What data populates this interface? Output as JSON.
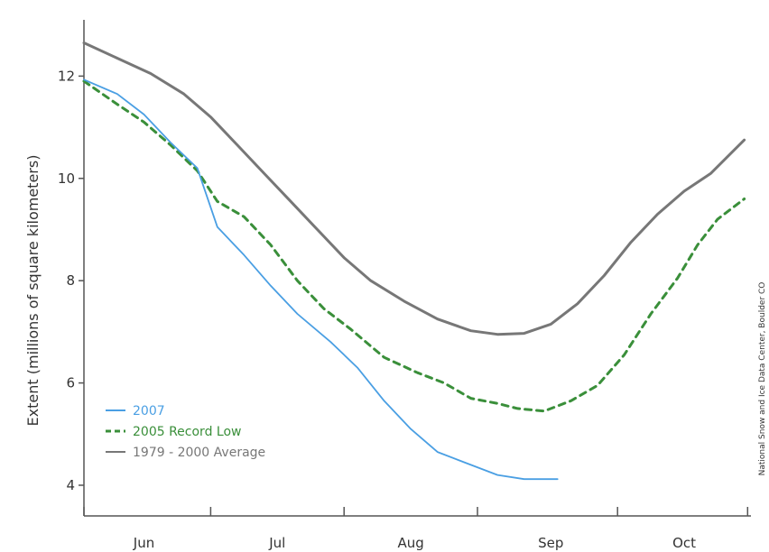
{
  "chart_data": {
    "type": "line",
    "ylabel": "Extent (millions of square kilometers)",
    "xlabel": "",
    "title": "",
    "ylim": [
      3.4,
      13.1
    ],
    "xlim": [
      0,
      100
    ],
    "y_ticks": [
      4,
      6,
      8,
      10,
      12
    ],
    "x_tick_labels": [
      {
        "label": "Jun",
        "x": 9
      },
      {
        "label": "Jul",
        "x": 29
      },
      {
        "label": "Aug",
        "x": 49
      },
      {
        "label": "Sep",
        "x": 70
      },
      {
        "label": "Oct",
        "x": 90
      }
    ],
    "x_minor_ticks": [
      0,
      19,
      39,
      59,
      80,
      99.5
    ],
    "grid": false,
    "legend_position": "lower-left",
    "credit": "National Snow and Ice Data Center, Boulder CO",
    "series": [
      {
        "name": "2007",
        "color": "#4a9fe3",
        "style": "solid",
        "points": [
          [
            0,
            11.93
          ],
          [
            5,
            11.65
          ],
          [
            9,
            11.25
          ],
          [
            13,
            10.7
          ],
          [
            17,
            10.2
          ],
          [
            20,
            9.05
          ],
          [
            24,
            8.5
          ],
          [
            28,
            7.9
          ],
          [
            32,
            7.35
          ],
          [
            37,
            6.8
          ],
          [
            41,
            6.3
          ],
          [
            45,
            5.65
          ],
          [
            49,
            5.1
          ],
          [
            53,
            4.65
          ],
          [
            57,
            4.45
          ],
          [
            62,
            4.2
          ],
          [
            66,
            4.12
          ],
          [
            71,
            4.12
          ]
        ]
      },
      {
        "name": "2005 Record Low",
        "color": "#3a8f3a",
        "style": "dashed",
        "points": [
          [
            0,
            11.9
          ],
          [
            5,
            11.45
          ],
          [
            9,
            11.1
          ],
          [
            13,
            10.65
          ],
          [
            17,
            10.15
          ],
          [
            20,
            9.55
          ],
          [
            24,
            9.25
          ],
          [
            28,
            8.7
          ],
          [
            32,
            8.0
          ],
          [
            36,
            7.45
          ],
          [
            40,
            7.05
          ],
          [
            45,
            6.5
          ],
          [
            50,
            6.2
          ],
          [
            54,
            6.0
          ],
          [
            58,
            5.7
          ],
          [
            62,
            5.6
          ],
          [
            65,
            5.5
          ],
          [
            69,
            5.45
          ],
          [
            73,
            5.65
          ],
          [
            77,
            5.95
          ],
          [
            81,
            6.55
          ],
          [
            85,
            7.35
          ],
          [
            89,
            8.05
          ],
          [
            92,
            8.7
          ],
          [
            95,
            9.2
          ],
          [
            99,
            9.6
          ]
        ]
      },
      {
        "name": "1979 - 2000 Average",
        "color": "#777777",
        "style": "solid",
        "points": [
          [
            0,
            12.65
          ],
          [
            5,
            12.35
          ],
          [
            10,
            12.05
          ],
          [
            15,
            11.65
          ],
          [
            19,
            11.2
          ],
          [
            23,
            10.65
          ],
          [
            27,
            10.1
          ],
          [
            31,
            9.55
          ],
          [
            35,
            9.0
          ],
          [
            39,
            8.45
          ],
          [
            43,
            8.0
          ],
          [
            48,
            7.6
          ],
          [
            53,
            7.25
          ],
          [
            58,
            7.02
          ],
          [
            62,
            6.95
          ],
          [
            66,
            6.97
          ],
          [
            70,
            7.15
          ],
          [
            74,
            7.55
          ],
          [
            78,
            8.1
          ],
          [
            82,
            8.75
          ],
          [
            86,
            9.3
          ],
          [
            90,
            9.75
          ],
          [
            94,
            10.1
          ],
          [
            99,
            10.75
          ]
        ]
      }
    ]
  }
}
